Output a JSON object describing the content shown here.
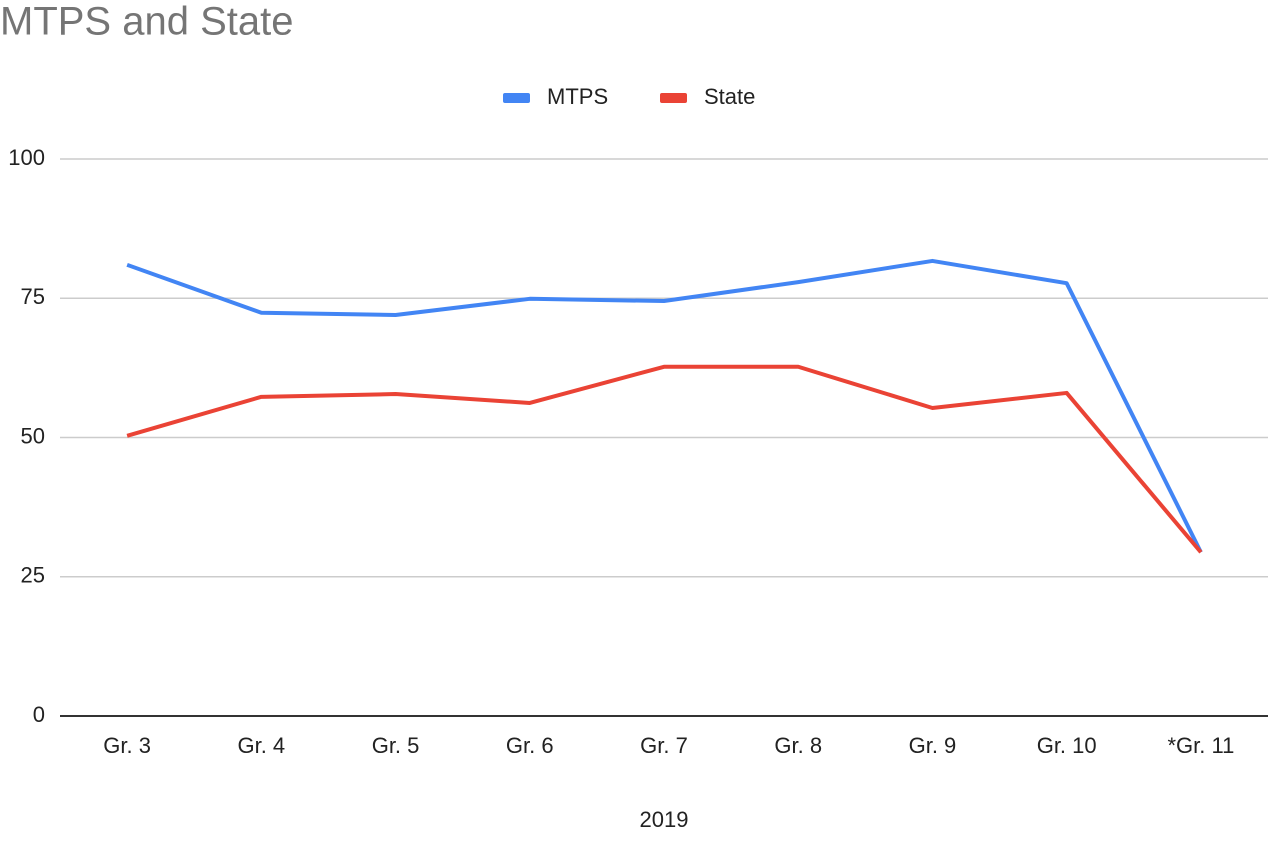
{
  "chart_data": {
    "type": "line",
    "title": "MTPS and State",
    "x_label": "2019",
    "categories": [
      "Gr. 3",
      "Gr. 4",
      "Gr. 5",
      "Gr. 6",
      "Gr. 7",
      "Gr. 8",
      "Gr. 9",
      "Gr. 10",
      "*Gr. 11"
    ],
    "series": [
      {
        "name": "MTPS",
        "color": "#4285f4",
        "values": [
          81.0,
          72.4,
          72.0,
          74.9,
          74.5,
          77.9,
          81.7,
          77.7,
          29.4
        ]
      },
      {
        "name": "State",
        "color": "#ea4335",
        "values": [
          50.3,
          57.3,
          57.8,
          56.2,
          62.7,
          62.7,
          55.3,
          58.0,
          29.4
        ]
      }
    ],
    "ylim": [
      0,
      100
    ],
    "yticks": [
      0,
      25,
      50,
      75,
      100
    ],
    "grid": true,
    "legend": "top"
  }
}
